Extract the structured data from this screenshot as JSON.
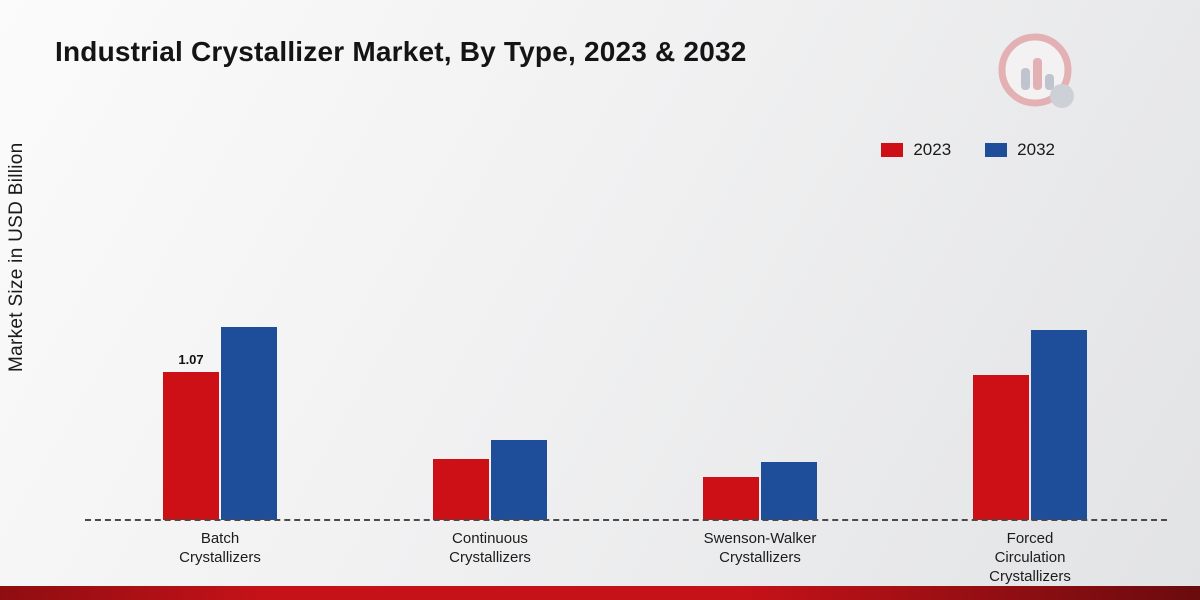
{
  "title": "Industrial Crystallizer Market, By Type, 2023 & 2032",
  "y_axis_label": "Market Size in USD Billion",
  "legend": {
    "items": [
      {
        "label": "2023"
      },
      {
        "label": "2032"
      }
    ]
  },
  "chart_data": {
    "type": "bar",
    "title": "Industrial Crystallizer Market, By Type, 2023 & 2032",
    "ylabel": "Market Size in USD Billion",
    "xlabel": "",
    "categories": [
      "Batch\nCrystallizers",
      "Continuous\nCrystallizers",
      "Swenson-Walker\nCrystallizers",
      "Forced\nCirculation\nCrystallizers"
    ],
    "series": [
      {
        "name": "2023",
        "color": "#cc1016",
        "values": [
          1.07,
          0.44,
          0.31,
          1.05
        ]
      },
      {
        "name": "2032",
        "color": "#1e4e9a",
        "values": [
          1.4,
          0.58,
          0.42,
          1.38
        ]
      }
    ],
    "data_labels": [
      [
        "1.07",
        "",
        "",
        ""
      ],
      [
        "",
        "",
        "",
        ""
      ]
    ],
    "ylim": [
      0,
      1.6
    ],
    "grid": false,
    "baseline_style": "dashed",
    "legend_position": "top-right"
  },
  "colors": {
    "accent_red": "#cc1016",
    "accent_blue": "#1e4e9a",
    "bottom_bar": "#c41218"
  }
}
